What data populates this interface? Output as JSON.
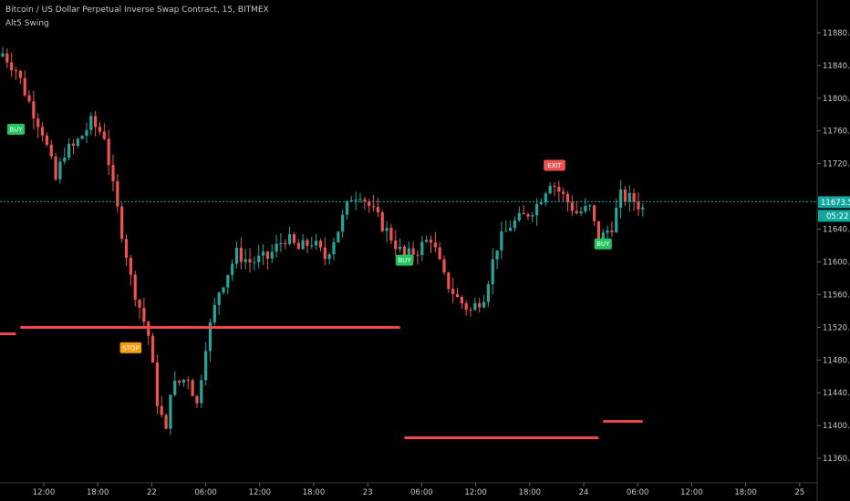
{
  "header": {
    "title": "Bitcoin / US Dollar Perpetual Inverse Swap Contract, 15, BITMEX",
    "indicator": "Alt5 Swing"
  },
  "colors": {
    "background": "#000000",
    "up": "#26a69a",
    "down": "#ef5350",
    "level_line": "#f24a4a",
    "price_tag": "#13a89e",
    "buy_label": "#22c55e",
    "exit_label": "#ef5350",
    "stop_label": "#f59e0b",
    "axis_text": "#c8c8c8"
  },
  "chart_data": {
    "type": "candlestick",
    "ylim": [
      11330,
      11920
    ],
    "y_ticks": [
      11880,
      11840,
      11800,
      11760,
      11720,
      11640,
      11600,
      11560,
      11520,
      11480,
      11440,
      11400,
      11360
    ],
    "x_ticks": [
      "12:00",
      "18:00",
      "22",
      "06:00",
      "12:00",
      "18:00",
      "23",
      "06:00",
      "12:00",
      "18:00",
      "24",
      "06:00",
      "12:00",
      "18:00",
      "25"
    ],
    "last_price": "11673.5",
    "countdown": "05:22",
    "close_path": [
      {
        "t": 0,
        "v": 11855
      },
      {
        "t": 3,
        "v": 11835
      },
      {
        "t": 6,
        "v": 11795
      },
      {
        "t": 9,
        "v": 11760
      },
      {
        "t": 12,
        "v": 11700
      },
      {
        "t": 14,
        "v": 11735
      },
      {
        "t": 16,
        "v": 11740
      },
      {
        "t": 20,
        "v": 11770
      },
      {
        "t": 23,
        "v": 11755
      },
      {
        "t": 25,
        "v": 11690
      },
      {
        "t": 28,
        "v": 11610
      },
      {
        "t": 29,
        "v": 11580
      },
      {
        "t": 31,
        "v": 11545
      },
      {
        "t": 33,
        "v": 11510
      },
      {
        "t": 35,
        "v": 11430
      },
      {
        "t": 37,
        "v": 11390
      },
      {
        "t": 38,
        "v": 11445
      },
      {
        "t": 42,
        "v": 11460
      },
      {
        "t": 44,
        "v": 11425
      },
      {
        "t": 46,
        "v": 11500
      },
      {
        "t": 49,
        "v": 11565
      },
      {
        "t": 53,
        "v": 11610
      },
      {
        "t": 56,
        "v": 11600
      },
      {
        "t": 60,
        "v": 11605
      },
      {
        "t": 64,
        "v": 11630
      },
      {
        "t": 67,
        "v": 11615
      },
      {
        "t": 70,
        "v": 11625
      },
      {
        "t": 73,
        "v": 11605
      },
      {
        "t": 76,
        "v": 11640
      },
      {
        "t": 79,
        "v": 11680
      },
      {
        "t": 81,
        "v": 11685
      },
      {
        "t": 84,
        "v": 11660
      },
      {
        "t": 88,
        "v": 11630
      },
      {
        "t": 91,
        "v": 11605
      },
      {
        "t": 94,
        "v": 11615
      },
      {
        "t": 97,
        "v": 11630
      },
      {
        "t": 100,
        "v": 11580
      },
      {
        "t": 103,
        "v": 11555
      },
      {
        "t": 106,
        "v": 11540
      },
      {
        "t": 109,
        "v": 11560
      },
      {
        "t": 112,
        "v": 11620
      },
      {
        "t": 115,
        "v": 11645
      },
      {
        "t": 118,
        "v": 11655
      },
      {
        "t": 121,
        "v": 11670
      },
      {
        "t": 124,
        "v": 11700
      },
      {
        "t": 127,
        "v": 11680
      },
      {
        "t": 130,
        "v": 11660
      },
      {
        "t": 133,
        "v": 11665
      },
      {
        "t": 135,
        "v": 11625
      },
      {
        "t": 138,
        "v": 11645
      },
      {
        "t": 140,
        "v": 11680
      },
      {
        "t": 143,
        "v": 11675
      },
      {
        "t": 145,
        "v": 11665
      }
    ],
    "levels": [
      {
        "value": 11512,
        "t_start": -5,
        "t_end": 3
      },
      {
        "value": 11520,
        "t_start": 4,
        "t_end": 90
      },
      {
        "value": 11385,
        "t_start": 91,
        "t_end": 135
      },
      {
        "value": 11405,
        "t_start": 136,
        "t_end": 145
      }
    ],
    "signals": [
      {
        "label": "BUY",
        "t": 3,
        "v": 11762,
        "kind": "buy"
      },
      {
        "label": "STOP",
        "t": 29,
        "v": 11495,
        "kind": "stop"
      },
      {
        "label": "BUY",
        "t": 91,
        "v": 11602,
        "kind": "buy"
      },
      {
        "label": "EXIT",
        "t": 125,
        "v": 11718,
        "kind": "exit"
      },
      {
        "label": "BUY",
        "t": 136,
        "v": 11622,
        "kind": "buy"
      }
    ]
  }
}
